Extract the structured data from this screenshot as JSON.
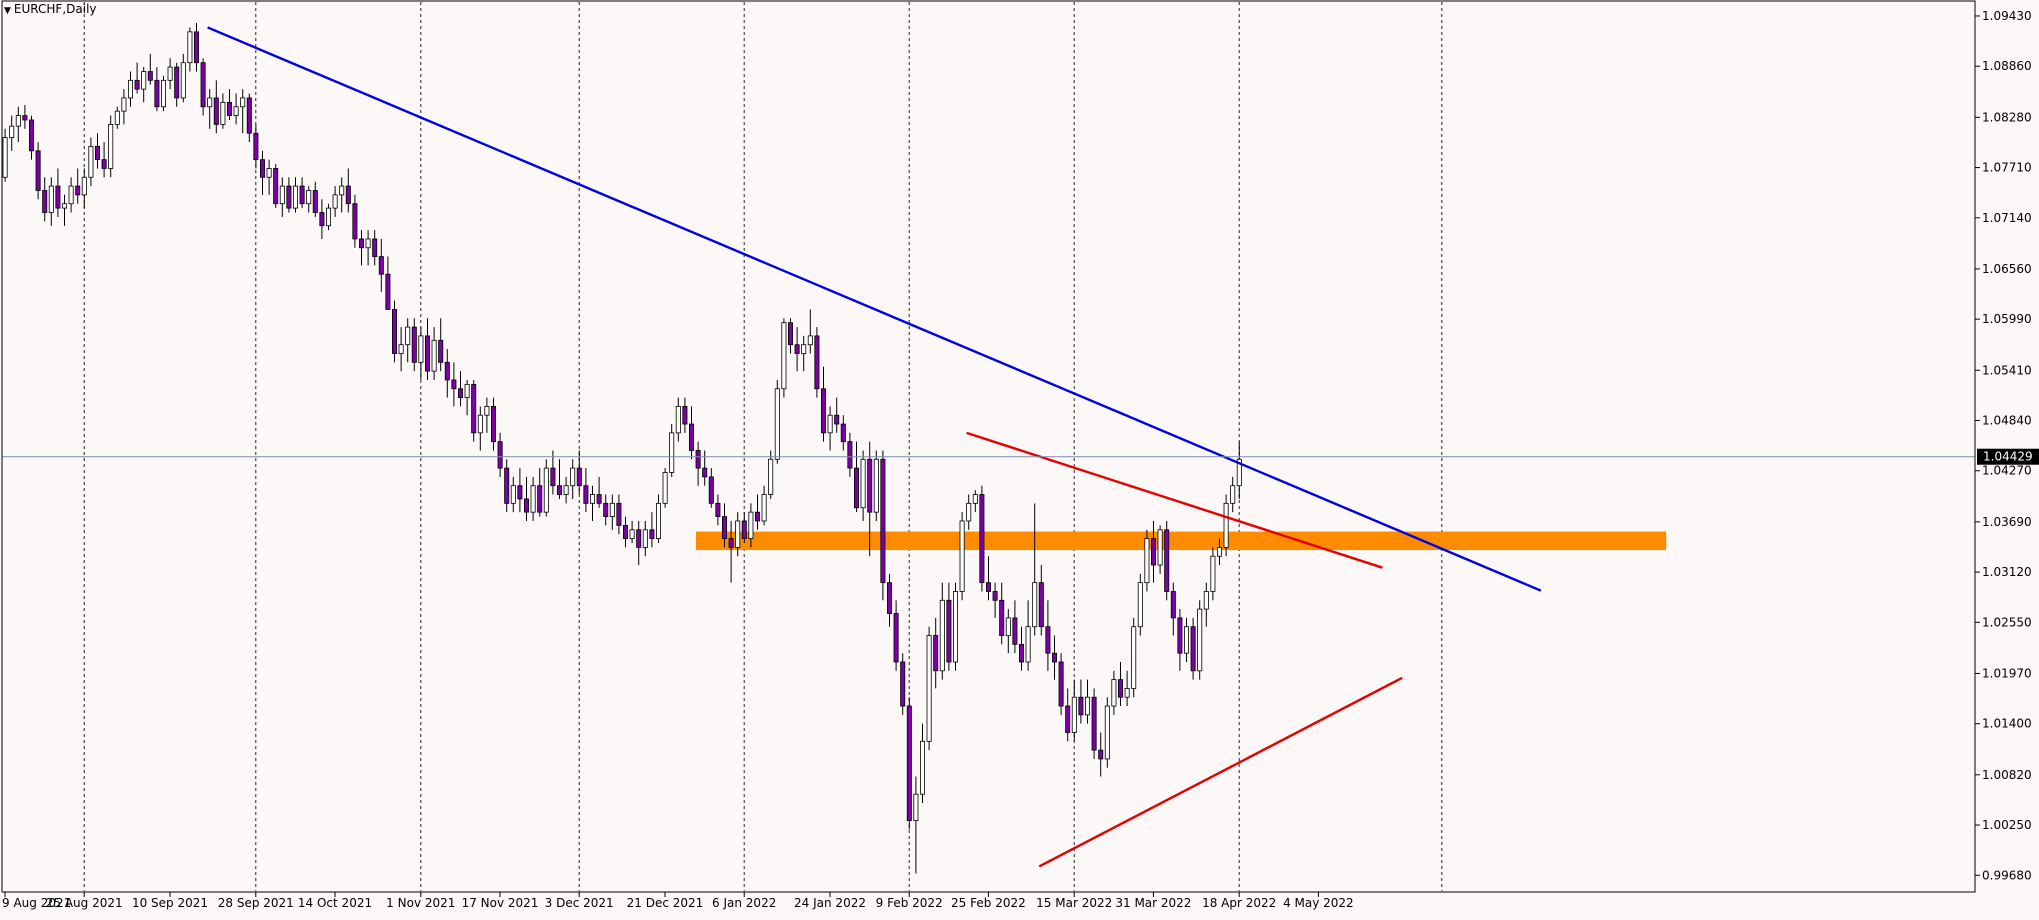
{
  "title": {
    "symbol": "EURCHF,Daily"
  },
  "colors": {
    "background": "#fcf8f8",
    "frame": "#000000",
    "bull_body": "#ffffff",
    "bear_body": "#7b00a6",
    "candle_border": "#000000",
    "grid": "#000000",
    "bid_line": "#7c8cb2",
    "price_label_bg": "#000000",
    "price_label_text": "#ffffff",
    "blue_trendline": "#0000e6",
    "red_trendline": "#e60000",
    "support_zone": "#ff8c00"
  },
  "chart_data": {
    "type": "candlestick",
    "symbol": "EURCHF",
    "timeframe": "Daily",
    "current_price": 1.04429,
    "current_price_label": "1.04429",
    "y_range": [
      0.9949,
      1.096
    ],
    "y_ticks": [
      "1.09430",
      "1.08860",
      "1.08280",
      "1.07710",
      "1.07140",
      "1.06560",
      "1.05990",
      "1.05410",
      "1.04840",
      "1.04270",
      "1.03690",
      "1.03120",
      "1.02550",
      "1.01970",
      "1.01400",
      "1.00820",
      "1.00250",
      "0.99680"
    ],
    "x_labels": [
      "9 Aug 2021",
      "25 Aug 2021",
      "10 Sep 2021",
      "28 Sep 2021",
      "14 Oct 2021",
      "1 Nov 2021",
      "17 Nov 2021",
      "3 Dec 2021",
      "21 Dec 2021",
      "6 Jan 2022",
      "24 Jan 2022",
      "9 Feb 2022",
      "25 Feb 2022",
      "15 Mar 2022",
      "31 Mar 2022",
      "18 Apr 2022",
      "4 May 2022"
    ],
    "vertical_gridlines_after_labels": [
      "25 Aug 2021",
      "28 Sep 2021",
      "1 Nov 2021",
      "3 Dec 2021",
      "6 Jan 2022",
      "9 Feb 2022",
      "15 Mar 2022",
      "18 Apr 2022"
    ],
    "vertical_gridlines_future_count": 1,
    "candles": [
      [
        1.076,
        1.0815,
        1.0755,
        1.0805
      ],
      [
        1.0805,
        1.083,
        1.079,
        1.0818
      ],
      [
        1.0818,
        1.084,
        1.08,
        1.083
      ],
      [
        1.083,
        1.0842,
        1.0815,
        1.0825
      ],
      [
        1.0825,
        1.083,
        1.078,
        1.079
      ],
      [
        1.079,
        1.08,
        1.0735,
        1.0745
      ],
      [
        1.0745,
        1.076,
        1.071,
        1.072
      ],
      [
        1.072,
        1.076,
        1.0705,
        1.075
      ],
      [
        1.075,
        1.077,
        1.0715,
        1.0725
      ],
      [
        1.0725,
        1.074,
        1.0705,
        1.073
      ],
      [
        1.073,
        1.076,
        1.072,
        1.075
      ],
      [
        1.075,
        1.077,
        1.073,
        1.074
      ],
      [
        1.074,
        1.077,
        1.0725,
        1.076
      ],
      [
        1.076,
        1.0805,
        1.075,
        1.0795
      ],
      [
        1.0795,
        1.081,
        1.077,
        1.078
      ],
      [
        1.078,
        1.08,
        1.076,
        1.077
      ],
      [
        1.077,
        1.083,
        1.076,
        1.082
      ],
      [
        1.082,
        1.084,
        1.0815,
        1.0835
      ],
      [
        1.0835,
        1.086,
        1.082,
        1.085
      ],
      [
        1.085,
        1.088,
        1.084,
        1.087
      ],
      [
        1.087,
        1.089,
        1.0855,
        1.086
      ],
      [
        1.086,
        1.0885,
        1.0845,
        1.088
      ],
      [
        1.088,
        1.09,
        1.0865,
        1.087
      ],
      [
        1.087,
        1.0885,
        1.0835,
        1.084
      ],
      [
        1.084,
        1.0875,
        1.0835,
        1.087
      ],
      [
        1.087,
        1.0895,
        1.086,
        1.0885
      ],
      [
        1.0885,
        1.089,
        1.084,
        1.085
      ],
      [
        1.085,
        1.09,
        1.0845,
        1.089
      ],
      [
        1.089,
        1.093,
        1.088,
        1.0925
      ],
      [
        1.0925,
        1.0935,
        1.088,
        1.089
      ],
      [
        1.089,
        1.0895,
        1.083,
        1.084
      ],
      [
        1.084,
        1.086,
        1.0815,
        1.085
      ],
      [
        1.085,
        1.087,
        1.081,
        1.082
      ],
      [
        1.082,
        1.0855,
        1.0815,
        1.0845
      ],
      [
        1.0845,
        1.086,
        1.0825,
        1.083
      ],
      [
        1.083,
        1.0855,
        1.082,
        1.084
      ],
      [
        1.084,
        1.086,
        1.081,
        1.085
      ],
      [
        1.085,
        1.0855,
        1.08,
        1.081
      ],
      [
        1.081,
        1.082,
        1.077,
        1.078
      ],
      [
        1.078,
        1.079,
        1.074,
        1.076
      ],
      [
        1.076,
        1.078,
        1.074,
        1.077
      ],
      [
        1.077,
        1.0775,
        1.0725,
        1.073
      ],
      [
        1.073,
        1.076,
        1.0715,
        1.075
      ],
      [
        1.075,
        1.076,
        1.072,
        1.0725
      ],
      [
        1.0725,
        1.076,
        1.072,
        1.075
      ],
      [
        1.075,
        1.076,
        1.0725,
        1.073
      ],
      [
        1.073,
        1.075,
        1.072,
        1.0745
      ],
      [
        1.0745,
        1.0755,
        1.0715,
        1.072
      ],
      [
        1.072,
        1.0735,
        1.069,
        1.0705
      ],
      [
        1.0705,
        1.073,
        1.07,
        1.0725
      ],
      [
        1.0725,
        1.075,
        1.0715,
        1.074
      ],
      [
        1.074,
        1.076,
        1.072,
        1.075
      ],
      [
        1.075,
        1.077,
        1.072,
        1.073
      ],
      [
        1.073,
        1.074,
        1.068,
        1.069
      ],
      [
        1.069,
        1.07,
        1.066,
        1.068
      ],
      [
        1.068,
        1.07,
        1.066,
        1.069
      ],
      [
        1.069,
        1.07,
        1.066,
        1.067
      ],
      [
        1.067,
        1.069,
        1.063,
        1.065
      ],
      [
        1.065,
        1.067,
        1.061,
        1.061
      ],
      [
        1.061,
        1.062,
        1.055,
        1.056
      ],
      [
        1.056,
        1.059,
        1.054,
        1.057
      ],
      [
        1.057,
        1.06,
        1.055,
        1.059
      ],
      [
        1.059,
        1.06,
        1.054,
        1.055
      ],
      [
        1.055,
        1.059,
        1.053,
        1.058
      ],
      [
        1.058,
        1.06,
        1.053,
        1.054
      ],
      [
        1.054,
        1.059,
        1.053,
        1.0575
      ],
      [
        1.0575,
        1.06,
        1.054,
        1.055
      ],
      [
        1.055,
        1.0565,
        1.051,
        1.053
      ],
      [
        1.053,
        1.055,
        1.05,
        1.052
      ],
      [
        1.052,
        1.054,
        1.05,
        1.051
      ],
      [
        1.051,
        1.053,
        1.049,
        1.0525
      ],
      [
        1.0525,
        1.053,
        1.046,
        1.047
      ],
      [
        1.047,
        1.05,
        1.045,
        1.049
      ],
      [
        1.049,
        1.051,
        1.047,
        1.05
      ],
      [
        1.05,
        1.051,
        1.045,
        1.046
      ],
      [
        1.046,
        1.047,
        1.042,
        1.043
      ],
      [
        1.043,
        1.044,
        1.038,
        1.039
      ],
      [
        1.039,
        1.042,
        1.038,
        1.041
      ],
      [
        1.041,
        1.043,
        1.038,
        1.0395
      ],
      [
        1.0395,
        1.042,
        1.037,
        1.038
      ],
      [
        1.038,
        1.042,
        1.037,
        1.041
      ],
      [
        1.041,
        1.043,
        1.0375,
        1.038
      ],
      [
        1.038,
        1.044,
        1.0375,
        1.043
      ],
      [
        1.043,
        1.045,
        1.04,
        1.041
      ],
      [
        1.041,
        1.044,
        1.0395,
        1.04
      ],
      [
        1.04,
        1.042,
        1.039,
        1.041
      ],
      [
        1.041,
        1.044,
        1.0395,
        1.043
      ],
      [
        1.043,
        1.045,
        1.04,
        1.041
      ],
      [
        1.041,
        1.043,
        1.038,
        1.039
      ],
      [
        1.039,
        1.041,
        1.037,
        1.04
      ],
      [
        1.04,
        1.042,
        1.0385,
        1.039
      ],
      [
        1.039,
        1.04,
        1.0365,
        1.0375
      ],
      [
        1.0375,
        1.04,
        1.036,
        1.039
      ],
      [
        1.039,
        1.04,
        1.0355,
        1.0365
      ],
      [
        1.0365,
        1.0375,
        1.034,
        1.035
      ],
      [
        1.035,
        1.037,
        1.0345,
        1.036
      ],
      [
        1.036,
        1.037,
        1.032,
        1.034
      ],
      [
        1.034,
        1.037,
        1.033,
        1.036
      ],
      [
        1.036,
        1.038,
        1.034,
        1.035
      ],
      [
        1.035,
        1.04,
        1.0345,
        1.039
      ],
      [
        1.039,
        1.043,
        1.0385,
        1.0425
      ],
      [
        1.0425,
        1.048,
        1.042,
        1.047
      ],
      [
        1.047,
        1.051,
        1.046,
        1.05
      ],
      [
        1.05,
        1.051,
        1.047,
        1.048
      ],
      [
        1.048,
        1.05,
        1.044,
        1.045
      ],
      [
        1.045,
        1.046,
        1.041,
        1.043
      ],
      [
        1.043,
        1.045,
        1.041,
        1.042
      ],
      [
        1.042,
        1.043,
        1.0385,
        1.039
      ],
      [
        1.039,
        1.04,
        1.0365,
        1.0375
      ],
      [
        1.0375,
        1.039,
        1.034,
        1.035
      ],
      [
        1.035,
        1.037,
        1.03,
        1.034
      ],
      [
        1.034,
        1.038,
        1.033,
        1.037
      ],
      [
        1.037,
        1.038,
        1.0345,
        1.035
      ],
      [
        1.035,
        1.039,
        1.034,
        1.038
      ],
      [
        1.038,
        1.04,
        1.036,
        1.037
      ],
      [
        1.037,
        1.041,
        1.0365,
        1.04
      ],
      [
        1.04,
        1.045,
        1.0395,
        1.044
      ],
      [
        1.044,
        1.053,
        1.0435,
        1.052
      ],
      [
        1.052,
        1.06,
        1.051,
        1.0595
      ],
      [
        1.0595,
        1.06,
        1.056,
        1.057
      ],
      [
        1.057,
        1.059,
        1.054,
        1.056
      ],
      [
        1.056,
        1.058,
        1.054,
        1.057
      ],
      [
        1.057,
        1.061,
        1.056,
        1.058
      ],
      [
        1.058,
        1.059,
        1.051,
        1.052
      ],
      [
        1.052,
        1.0545,
        1.046,
        1.047
      ],
      [
        1.047,
        1.05,
        1.045,
        1.049
      ],
      [
        1.049,
        1.051,
        1.047,
        1.048
      ],
      [
        1.048,
        1.049,
        1.045,
        1.046
      ],
      [
        1.046,
        1.047,
        1.042,
        1.043
      ],
      [
        1.043,
        1.046,
        1.038,
        1.0385
      ],
      [
        1.0385,
        1.045,
        1.037,
        1.044
      ],
      [
        1.044,
        1.046,
        1.033,
        1.038
      ],
      [
        1.038,
        1.045,
        1.037,
        1.044
      ],
      [
        1.044,
        1.045,
        1.028,
        1.03
      ],
      [
        1.03,
        1.031,
        1.025,
        1.0265
      ],
      [
        1.0265,
        1.028,
        1.02,
        1.021
      ],
      [
        1.021,
        1.022,
        1.015,
        1.016
      ],
      [
        1.016,
        1.017,
        1.002,
        1.003
      ],
      [
        1.003,
        1.008,
        0.997,
        1.006
      ],
      [
        1.006,
        1.014,
        1.005,
        1.012
      ],
      [
        1.012,
        1.025,
        1.011,
        1.024
      ],
      [
        1.024,
        1.026,
        1.018,
        1.02
      ],
      [
        1.02,
        1.03,
        1.019,
        1.028
      ],
      [
        1.028,
        1.03,
        1.02,
        1.021
      ],
      [
        1.021,
        1.03,
        1.02,
        1.029
      ],
      [
        1.029,
        1.038,
        1.028,
        1.037
      ],
      [
        1.037,
        1.04,
        1.036,
        1.039
      ],
      [
        1.039,
        1.0405,
        1.038,
        1.04
      ],
      [
        1.04,
        1.041,
        1.029,
        1.03
      ],
      [
        1.03,
        1.033,
        1.028,
        1.029
      ],
      [
        1.029,
        1.03,
        1.026,
        1.028
      ],
      [
        1.028,
        1.03,
        1.023,
        1.024
      ],
      [
        1.024,
        1.027,
        1.022,
        1.026
      ],
      [
        1.026,
        1.028,
        1.022,
        1.023
      ],
      [
        1.023,
        1.025,
        1.02,
        1.021
      ],
      [
        1.021,
        1.028,
        1.02,
        1.025
      ],
      [
        1.025,
        1.039,
        1.024,
        1.03
      ],
      [
        1.03,
        1.032,
        1.024,
        1.025
      ],
      [
        1.025,
        1.028,
        1.02,
        1.022
      ],
      [
        1.022,
        1.024,
        1.019,
        1.021
      ],
      [
        1.021,
        1.022,
        1.015,
        1.016
      ],
      [
        1.016,
        1.018,
        1.012,
        1.013
      ],
      [
        1.013,
        1.019,
        1.012,
        1.017
      ],
      [
        1.017,
        1.019,
        1.014,
        1.015
      ],
      [
        1.015,
        1.019,
        1.014,
        1.017
      ],
      [
        1.017,
        1.018,
        1.01,
        1.011
      ],
      [
        1.011,
        1.013,
        1.008,
        1.01
      ],
      [
        1.01,
        1.017,
        1.009,
        1.016
      ],
      [
        1.016,
        1.02,
        1.015,
        1.019
      ],
      [
        1.019,
        1.021,
        1.016,
        1.017
      ],
      [
        1.017,
        1.02,
        1.016,
        1.018
      ],
      [
        1.018,
        1.026,
        1.017,
        1.025
      ],
      [
        1.025,
        1.031,
        1.024,
        1.03
      ],
      [
        1.03,
        1.036,
        1.029,
        1.035
      ],
      [
        1.035,
        1.037,
        1.03,
        1.032
      ],
      [
        1.032,
        1.0365,
        1.031,
        1.036
      ],
      [
        1.036,
        1.037,
        1.028,
        1.029
      ],
      [
        1.029,
        1.03,
        1.024,
        1.026
      ],
      [
        1.026,
        1.027,
        1.02,
        1.022
      ],
      [
        1.022,
        1.026,
        1.021,
        1.025
      ],
      [
        1.025,
        1.026,
        1.019,
        1.02
      ],
      [
        1.02,
        1.028,
        1.019,
        1.027
      ],
      [
        1.027,
        1.03,
        1.025,
        1.029
      ],
      [
        1.029,
        1.034,
        1.028,
        1.033
      ],
      [
        1.033,
        1.035,
        1.032,
        1.034
      ],
      [
        1.034,
        1.04,
        1.033,
        1.039
      ],
      [
        1.039,
        1.042,
        1.038,
        1.041
      ],
      [
        1.041,
        1.046,
        1.0395,
        1.044
      ]
    ],
    "annotations": [
      {
        "type": "trendline",
        "name": "descending-resistance",
        "color": "#0000e6",
        "from": [
          31,
          1.093
        ],
        "to": [
          233,
          1.0291
        ]
      },
      {
        "type": "trendline",
        "name": "lower-high-resistance",
        "color": "#e60000",
        "from": [
          146,
          1.047
        ],
        "to": [
          209,
          1.0317
        ]
      },
      {
        "type": "trendline",
        "name": "rising-support",
        "color": "#e60000",
        "from": [
          157,
          0.9978
        ],
        "to": [
          212,
          1.0192
        ]
      },
      {
        "type": "zone",
        "name": "support-resistance-zone",
        "color": "#ff8c00",
        "x_from": 105,
        "x_to": 252,
        "y_from": 1.0337,
        "y_to": 1.0358
      }
    ]
  }
}
